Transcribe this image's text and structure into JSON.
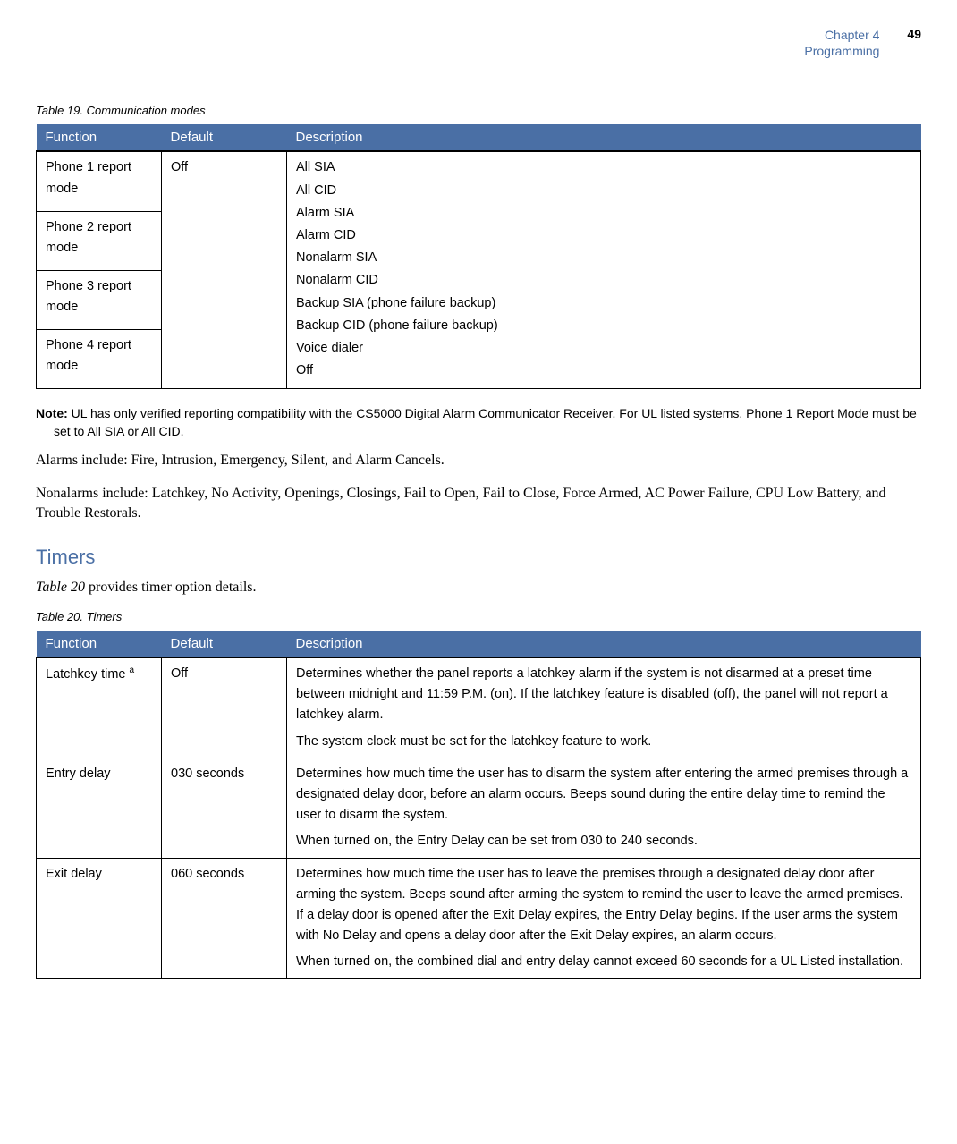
{
  "header": {
    "chapter": "Chapter 4",
    "section": "Programming",
    "page_number": "49"
  },
  "table19": {
    "caption": "Table 19.   Communication modes",
    "headers": [
      "Function",
      "Default",
      "Description"
    ],
    "functions": [
      "Phone 1 report mode",
      "Phone 2 report mode",
      "Phone 3 report mode",
      "Phone 4 report mode"
    ],
    "default": "Off",
    "description_items": [
      "All SIA",
      "All CID",
      "Alarm SIA",
      "Alarm CID",
      "Nonalarm SIA",
      "Nonalarm CID",
      "Backup SIA (phone failure backup)",
      "Backup CID (phone failure backup)",
      "Voice dialer",
      "Off"
    ]
  },
  "note": {
    "label": "Note:",
    "text": "  UL has only verified reporting compatibility with the CS5000 Digital Alarm Communicator Receiver. For UL listed systems, Phone 1 Report Mode must be set to All SIA or All CID."
  },
  "paragraphs": {
    "alarms": "Alarms include: Fire, Intrusion, Emergency, Silent, and Alarm Cancels.",
    "nonalarms": "Nonalarms include: Latchkey, No Activity, Openings, Closings, Fail to Open, Fail to Close, Force Armed, AC Power Failure, CPU Low Battery, and Trouble Restorals."
  },
  "timers_section": {
    "heading": "Timers",
    "intro_ref": "Table 20",
    "intro_rest": " provides timer option details."
  },
  "table20": {
    "caption": "Table 20.   Timers",
    "headers": [
      "Function",
      "Default",
      "Description"
    ],
    "rows": [
      {
        "function": "Latchkey time ",
        "sup": "a",
        "default": "Off",
        "desc1": "Determines whether the panel reports a latchkey alarm if the system is not disarmed at a preset time between midnight and 11:59 P.M. (on). If the latchkey feature is disabled (off), the panel will not report a latchkey alarm.",
        "desc2": "The system clock must be set for the latchkey feature to work."
      },
      {
        "function": "Entry delay",
        "sup": "",
        "default": "030 seconds",
        "desc1": "Determines how much time the user has to disarm the system after entering the armed premises through a designated delay door, before an alarm occurs. Beeps sound during the entire delay time to remind the user to disarm the system.",
        "desc2": "When turned on, the Entry Delay can be set from 030 to 240 seconds."
      },
      {
        "function": "Exit delay",
        "sup": "",
        "default": "060 seconds",
        "desc1": "Determines how much time the user has to leave the premises through a designated delay door after arming the system. Beeps sound after arming the system to remind the user to leave the armed premises. If a delay door is opened after the Exit Delay expires, the Entry Delay begins. If the user arms the system with No Delay and opens a delay door after the Exit Delay expires, an alarm occurs.",
        "desc2": "When turned on, the combined dial and entry delay cannot exceed 60 seconds for a UL Listed installation."
      }
    ]
  }
}
